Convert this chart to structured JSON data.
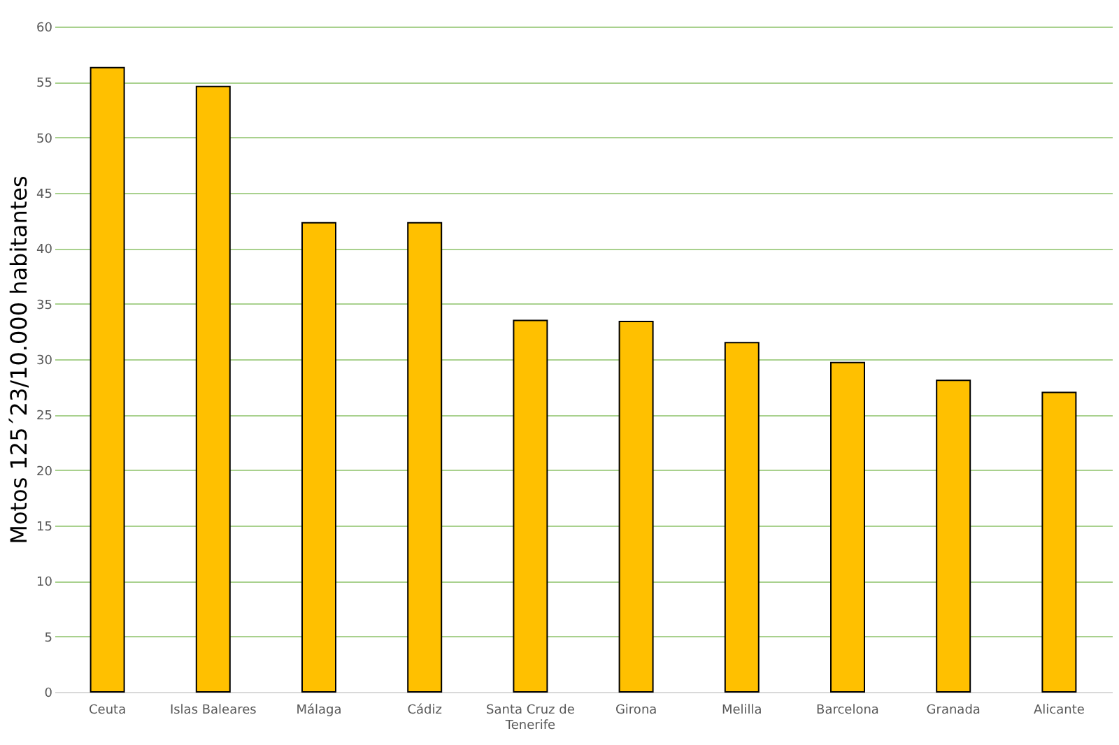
{
  "chart_data": {
    "type": "bar",
    "ylabel": "Motos 125´23/10.000 habitantes",
    "categories": [
      "Ceuta",
      "Islas Baleares",
      "Málaga",
      "Cádiz",
      "Santa Cruz de Tenerife",
      "Girona",
      "Melilla",
      "Barcelona",
      "Granada",
      "Alicante"
    ],
    "values": [
      56.3,
      54.6,
      42.3,
      42.3,
      33.5,
      33.4,
      31.5,
      29.7,
      28.1,
      27.0
    ],
    "color": "#ffc000",
    "ylim": [
      0,
      60
    ],
    "yticks": [
      0,
      5,
      10,
      15,
      20,
      25,
      30,
      35,
      40,
      45,
      50,
      55,
      60
    ],
    "grid": "y"
  }
}
